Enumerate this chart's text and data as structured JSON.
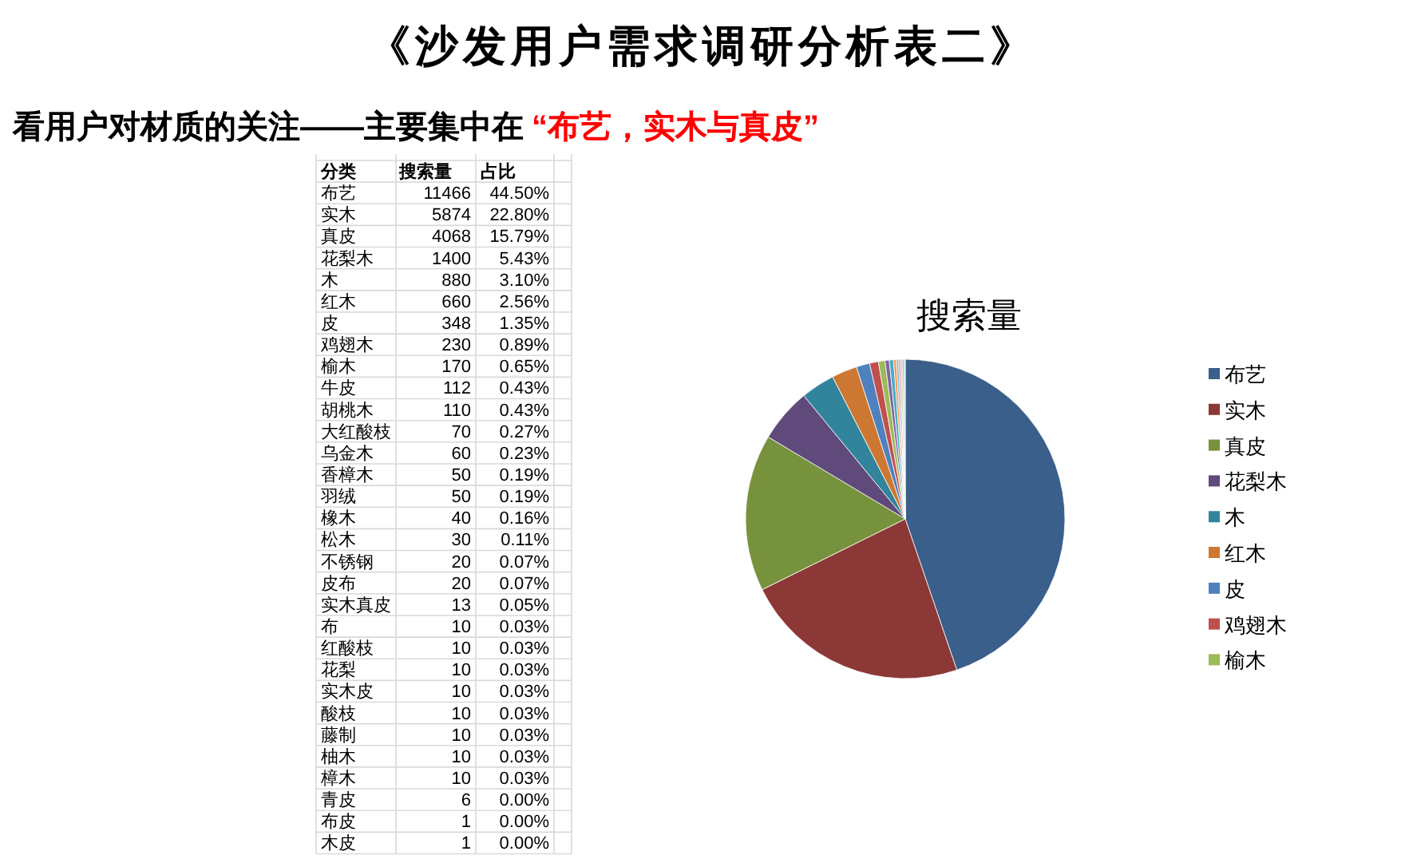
{
  "chart_data": [
    {
      "type": "other",
      "title": "《沙发用户需求调研分析表二》",
      "subtitle": "看用户对材质的关注——主要集中在",
      "annotations": [
        "“布艺，实木与真皮”"
      ]
    },
    {
      "type": "other",
      "annotations": [
        "分类"
      ],
      "categories": [
        "布艺",
        "实木",
        "真皮",
        "花梨木",
        "木",
        "红木",
        "皮",
        "鸡翅木",
        "榆木",
        "牛皮",
        "胡桃木",
        "大红酸枝",
        "乌金木",
        "香樟木",
        "羽绒",
        "橡木",
        "松木",
        "不锈钢",
        "皮布",
        "实木真皮",
        "布",
        "红酸枝",
        "花梨",
        "实木皮",
        "酸枝",
        "藤制",
        "柚木",
        "樟木",
        "青皮",
        "布皮",
        "木皮"
      ],
      "series": [
        {
          "name": "搜索量",
          "values": [
            11466,
            5874,
            4068,
            1400,
            880,
            660,
            348,
            230,
            170,
            112,
            110,
            70,
            60,
            50,
            50,
            40,
            30,
            20,
            20,
            13,
            10,
            10,
            10,
            10,
            10,
            10,
            10,
            10,
            6,
            1,
            1
          ]
        },
        {
          "name": "占比",
          "values": [
            44.5,
            22.8,
            15.79,
            5.43,
            3.1,
            2.56,
            1.35,
            0.89,
            0.65,
            0.43,
            0.43,
            0.27,
            0.23,
            0.19,
            0.19,
            0.16,
            0.11,
            0.07,
            0.07,
            0.05,
            0.03,
            0.03,
            0.03,
            0.03,
            0.03,
            0.03,
            0.03,
            0.03,
            0,
            0,
            0
          ],
          "value_labels": [
            "44.50%",
            "22.80%",
            "15.79%",
            "5.43%",
            "3.10%",
            "2.56%",
            "1.35%",
            "0.89%",
            "0.65%",
            "0.43%",
            "0.43%",
            "0.27%",
            "0.23%",
            "0.19%",
            "0.19%",
            "0.16%",
            "0.11%",
            "0.07%",
            "0.07%",
            "0.05%",
            "0.03%",
            "0.03%",
            "0.03%",
            "0.03%",
            "0.03%",
            "0.03%",
            "0.03%",
            "0.03%",
            "0.00%",
            "0.00%",
            "0.00%"
          ]
        }
      ],
      "data_labels": true
    },
    {
      "type": "pie",
      "title": "搜索量",
      "categories": [
        "布艺",
        "实木",
        "真皮",
        "花梨木",
        "木",
        "红木",
        "皮",
        "鸡翅木",
        "榆木",
        null,
        null,
        null,
        null,
        null,
        null,
        null,
        null,
        null,
        null,
        null,
        null,
        null,
        null,
        null,
        null,
        null,
        null,
        null,
        null,
        null,
        null
      ],
      "values": [
        44.51,
        22.8,
        15.79,
        5.43,
        3.42,
        2.56,
        1.35,
        0.89,
        0.66,
        0.43,
        0.43,
        0.27,
        0.23,
        0.19,
        0.19,
        0.16,
        0.12,
        null,
        null,
        null,
        null,
        null,
        null,
        null,
        null,
        null,
        null,
        null,
        null,
        null,
        null
      ],
      "colors": [
        "#3a5f8b",
        "#8c3836",
        "#77923c",
        "#5f4a7b",
        "#31849b",
        "#cd7832",
        "#4f81bd",
        "#c0504d",
        "#9bbb59",
        "#8064a2",
        "#4bacc6",
        "#f79646",
        "#95b3d7",
        "#d99694",
        "#c3d69b",
        "#b3a2c7",
        "#93cdde",
        null,
        null,
        null,
        null,
        null,
        null,
        null,
        null,
        null,
        null,
        null,
        null,
        null,
        null
      ],
      "legend": "right"
    }
  ]
}
